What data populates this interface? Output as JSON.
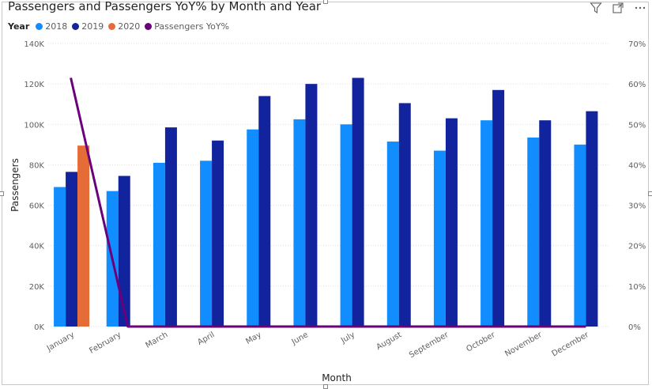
{
  "visual": {
    "title": "Passengers and Passengers YoY% by Month and Year",
    "toolbar_icons": [
      "filter-icon",
      "focus-mode-icon",
      "more-options-icon"
    ]
  },
  "legend": {
    "title": "Year",
    "items": [
      {
        "label": "2018",
        "color": "#118dff"
      },
      {
        "label": "2019",
        "color": "#12239e"
      },
      {
        "label": "2020",
        "color": "#e66c37"
      },
      {
        "label": "Passengers YoY%",
        "color": "#6b007b"
      }
    ]
  },
  "chart_data": {
    "type": "bar",
    "title": "Passengers and Passengers YoY% by Month and Year",
    "xlabel": "Month",
    "ylabel": "Passengers",
    "ylim": [
      0,
      140000
    ],
    "y2lim": [
      0,
      70
    ],
    "y_ticks": [
      "0K",
      "20K",
      "40K",
      "60K",
      "80K",
      "100K",
      "120K",
      "140K"
    ],
    "y2_ticks": [
      "0%",
      "10%",
      "20%",
      "30%",
      "40%",
      "50%",
      "60%",
      "70%"
    ],
    "grid": true,
    "categories": [
      "January",
      "February",
      "March",
      "April",
      "May",
      "June",
      "July",
      "August",
      "September",
      "October",
      "November",
      "December"
    ],
    "series": [
      {
        "name": "2018",
        "color": "#118dff",
        "values": [
          69000,
          67000,
          81000,
          82000,
          97500,
          102500,
          100000,
          91500,
          87000,
          102000,
          93500,
          90000
        ]
      },
      {
        "name": "2019",
        "color": "#12239e",
        "values": [
          76500,
          74500,
          98500,
          92000,
          114000,
          120000,
          123000,
          110500,
          103000,
          117000,
          102000,
          106500
        ]
      },
      {
        "name": "2020",
        "color": "#e66c37",
        "values": [
          89500,
          null,
          null,
          null,
          null,
          null,
          null,
          null,
          null,
          null,
          null,
          null
        ]
      }
    ],
    "line_series": {
      "name": "Passengers YoY%",
      "color": "#6b007b",
      "axis": "secondary",
      "values": [
        61.5,
        0,
        0,
        0,
        0,
        0,
        0,
        0,
        0,
        0,
        0,
        0
      ]
    }
  }
}
